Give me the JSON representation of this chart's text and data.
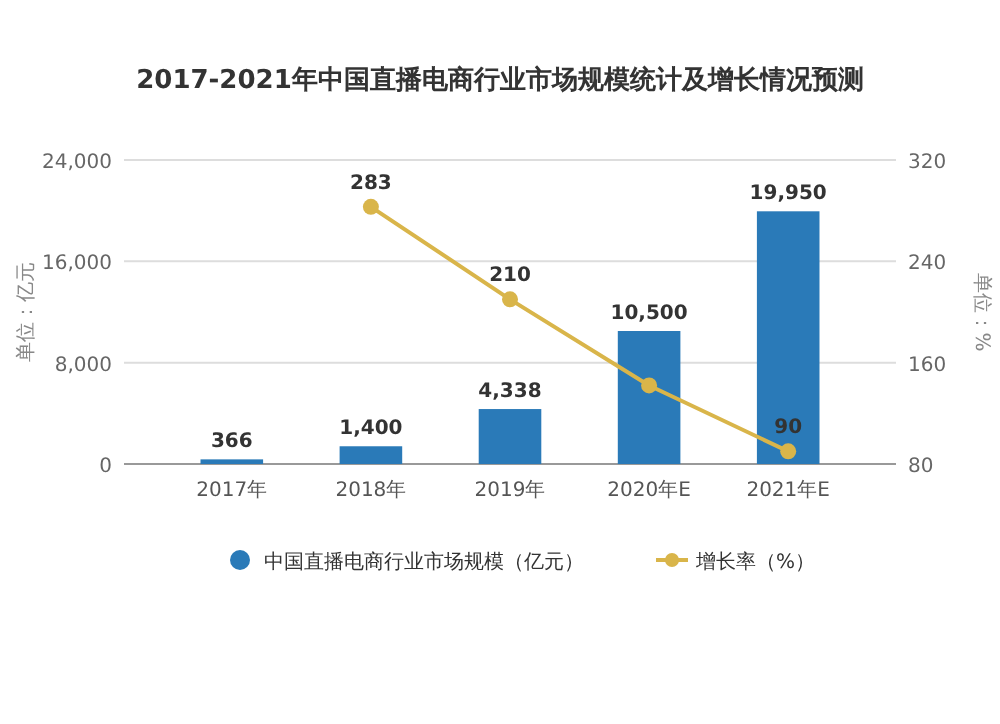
{
  "chart_data": {
    "type": "bar",
    "title": "2017-2021年中国直播电商行业市场规模统计及增长情况预测",
    "categories": [
      "2017年",
      "2018年",
      "2019年",
      "2020年E",
      "2021年E"
    ],
    "series": [
      {
        "name": "中国直播电商行业市场规模（亿元）",
        "color": "#2a7ab8",
        "values": [
          366,
          1400,
          4338,
          10500,
          19950
        ],
        "value_labels": [
          "366",
          "1,400",
          "4,338",
          "10,500",
          "19,950"
        ]
      },
      {
        "name": "增长率（%）",
        "type": "line",
        "axis": "y2",
        "color": "#d9b54a",
        "values": [
          null,
          283,
          210,
          142,
          90
        ],
        "value_labels": [
          null,
          "283",
          "210",
          null,
          "90"
        ]
      }
    ],
    "ylabel": "单位：亿元",
    "y2label": "单位：%",
    "ylim": [
      0,
      24000
    ],
    "yticks": [
      {
        "value": 0,
        "label": "0"
      },
      {
        "value": 8000,
        "label": "8,000"
      },
      {
        "value": 16000,
        "label": "16,000"
      },
      {
        "value": 24000,
        "label": "24,000"
      }
    ],
    "y2lim": [
      80,
      320
    ],
    "y2ticks": [
      80,
      160,
      240,
      320
    ],
    "grid": "y",
    "legend": "bottom",
    "marker": "circle"
  }
}
